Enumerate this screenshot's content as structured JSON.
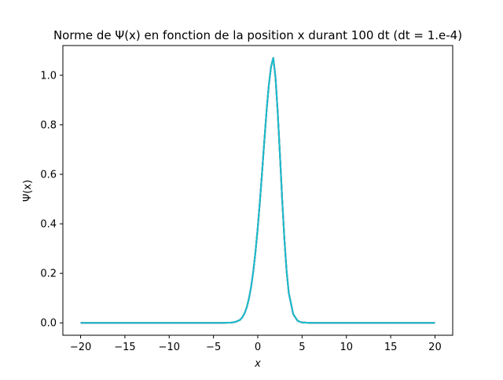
{
  "chart_data": {
    "type": "line",
    "title": "Norme de Ψ(x) en fonction de la position x durant 100 dt (dt = 1.e-4)",
    "xlabel": "x",
    "ylabel": "Ψ(x)",
    "xlim": [
      -22,
      22
    ],
    "ylim": [
      -0.05,
      1.12
    ],
    "xticks": [
      -20,
      -15,
      -10,
      -5,
      0,
      5,
      10,
      15,
      20
    ],
    "yticks": [
      0.0,
      0.2,
      0.4,
      0.6,
      0.8,
      1.0
    ],
    "xtick_labels": [
      "−20",
      "−15",
      "−10",
      "−5",
      "0",
      "5",
      "10",
      "15",
      "20"
    ],
    "ytick_labels": [
      "0.0",
      "0.2",
      "0.4",
      "0.6",
      "0.8",
      "1.0"
    ],
    "grid": false,
    "legend": null,
    "colors": [
      "#2ca02c",
      "#1f77b4",
      "#ff7f0e",
      "#9467bd",
      "#17becf"
    ],
    "series": [
      {
        "x": [
          -20,
          -5,
          -4,
          -3,
          -2.5,
          -2,
          -1.75,
          -1.5,
          -1.25,
          -1,
          -0.75,
          -0.5,
          -0.25,
          0,
          0.25,
          0.5,
          0.75,
          1,
          1.25,
          1.5,
          1.75,
          2,
          2.25,
          2.5,
          2.75,
          3,
          3.25,
          3.5,
          4,
          4.5,
          5,
          6,
          20
        ],
        "y": [
          0,
          0,
          0.0001,
          0.001,
          0.004,
          0.012,
          0.022,
          0.038,
          0.062,
          0.098,
          0.146,
          0.21,
          0.29,
          0.386,
          0.496,
          0.616,
          0.74,
          0.86,
          0.962,
          1.035,
          1.07,
          0.99,
          0.85,
          0.68,
          0.5,
          0.34,
          0.21,
          0.12,
          0.035,
          0.008,
          0.0015,
          0,
          0
        ]
      }
    ]
  }
}
